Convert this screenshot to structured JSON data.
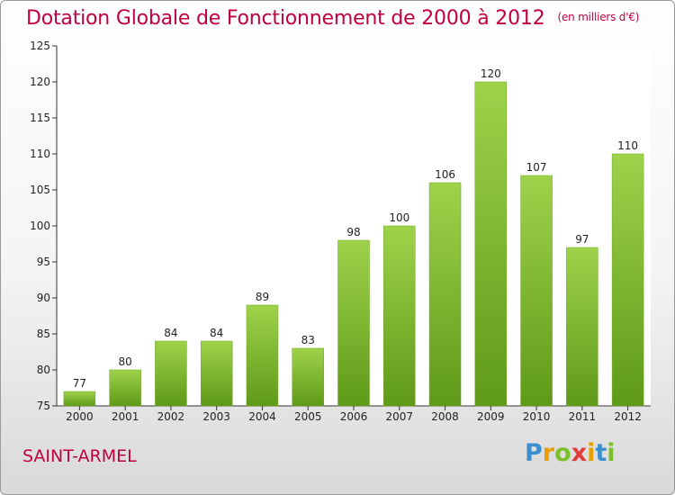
{
  "title": "Dotation Globale de Fonctionnement de 2000 à 2012",
  "unit": "(en milliers d'€)",
  "place": "SAINT-ARMEL",
  "logo": {
    "letters": [
      "P",
      "r",
      "o",
      "x",
      "i",
      "t",
      "i"
    ],
    "colors": [
      "#3d8fd0",
      "#e8a000",
      "#7bbf2a",
      "#e23c3c",
      "#e8a000",
      "#3d8fd0",
      "#7bbf2a"
    ]
  },
  "colors": {
    "bar_light": "#9fd24b",
    "bar_dark": "#5e9a18",
    "accent": "#c0003f"
  },
  "chart_data": {
    "type": "bar",
    "categories": [
      "2000",
      "2001",
      "2002",
      "2003",
      "2004",
      "2005",
      "2006",
      "2007",
      "2008",
      "2009",
      "2010",
      "2011",
      "2012"
    ],
    "values": [
      77,
      80,
      84,
      84,
      89,
      83,
      98,
      100,
      106,
      120,
      107,
      97,
      110
    ],
    "ylim": [
      75,
      125
    ],
    "yticks": [
      75,
      80,
      85,
      90,
      95,
      100,
      105,
      110,
      115,
      120,
      125
    ],
    "grid": false
  }
}
